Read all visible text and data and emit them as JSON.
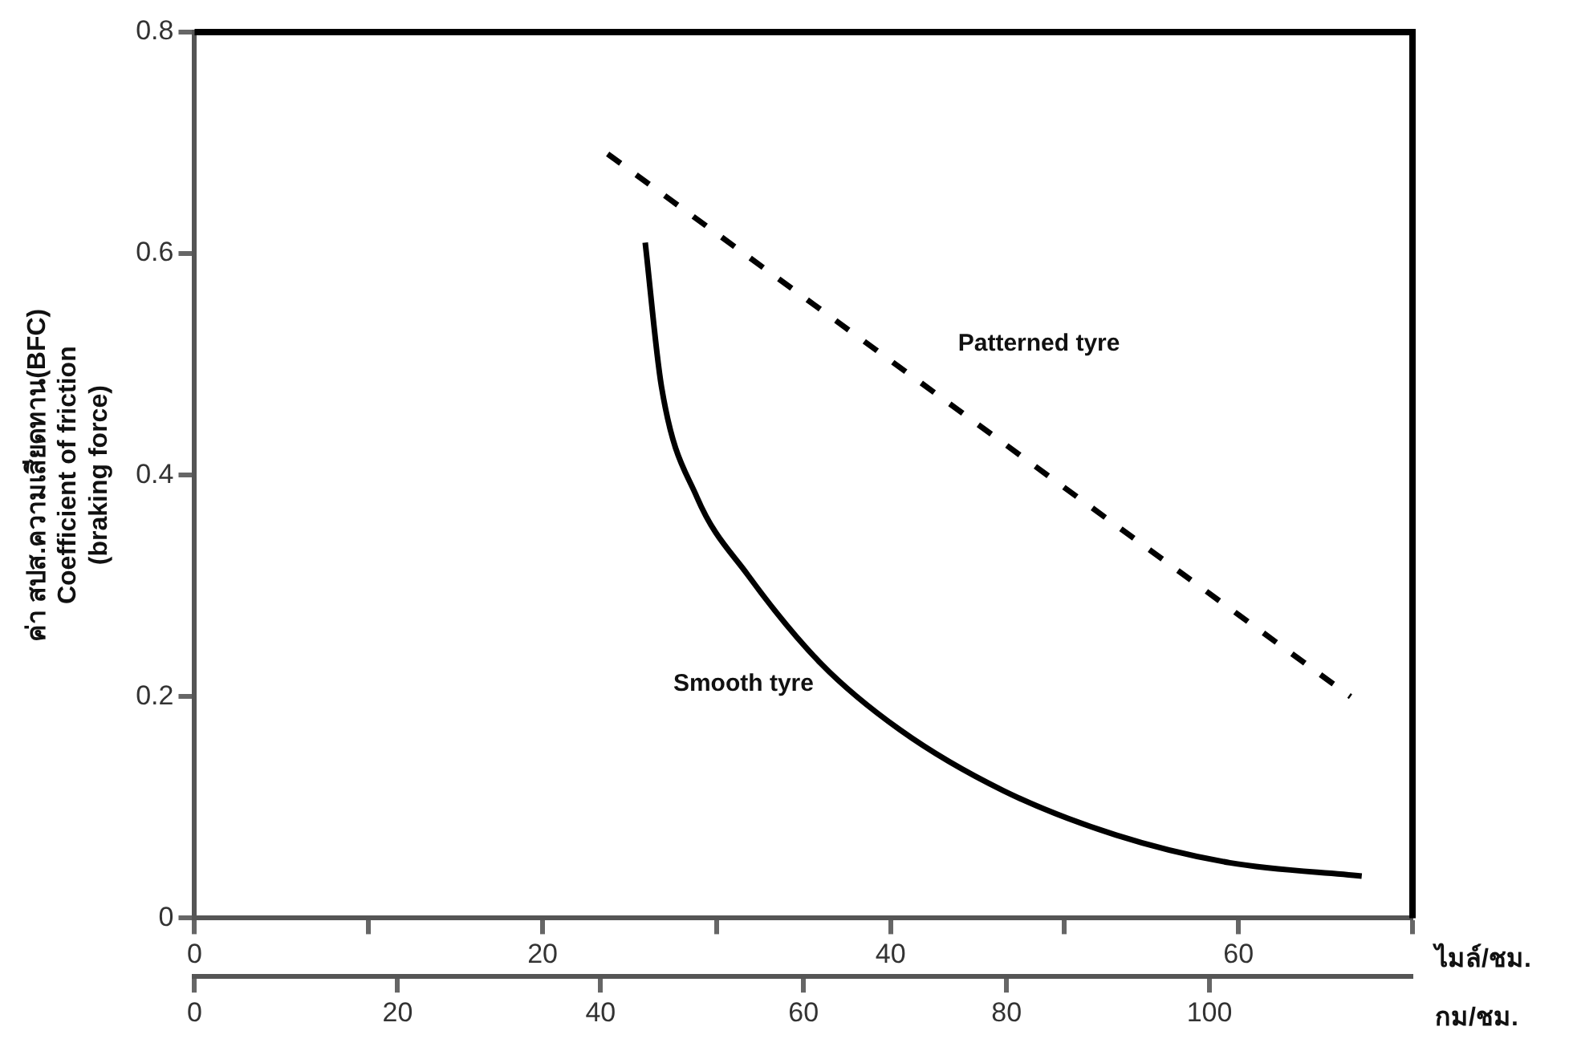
{
  "chart_data": {
    "type": "line",
    "ylabel": "ค่า สปส.ความเสียดทาน(BFC)\nCoefficient of friction\n(braking force)",
    "xlabel": "กม/ชม.",
    "x2label": "ไมล์/ชม.",
    "xlim": [
      0,
      120
    ],
    "xticks": [
      0,
      20,
      40,
      60,
      80,
      100
    ],
    "x2lim": [
      0,
      70
    ],
    "x2ticks": [
      0,
      {
        "value": 10,
        "label": null
      },
      20,
      {
        "value": 30,
        "label": null
      },
      40,
      {
        "value": 50,
        "label": null
      },
      60,
      {
        "value": 70,
        "label": null
      }
    ],
    "ylim": [
      0,
      0.8
    ],
    "yticks": [
      0,
      0.2,
      0.4,
      0.6,
      0.8
    ],
    "grid": false,
    "legend": false,
    "marker": "none",
    "series": [
      {
        "name": "Patterned tyre",
        "color": "#000000",
        "line_style": "dashed",
        "x": [
          40.7,
          113.9
        ],
        "values": [
          0.69,
          0.2
        ]
      },
      {
        "name": "Smooth tyre",
        "color": "#000000",
        "line_style": "solid",
        "x": [
          44.4,
          46,
          49.5,
          54.5,
          61.7,
          69.5,
          79.7,
          90.8,
          102,
          115
        ],
        "values": [
          0.61,
          0.48,
          0.38,
          0.31,
          0.23,
          0.17,
          0.115,
          0.075,
          0.05,
          0.038
        ]
      }
    ]
  }
}
